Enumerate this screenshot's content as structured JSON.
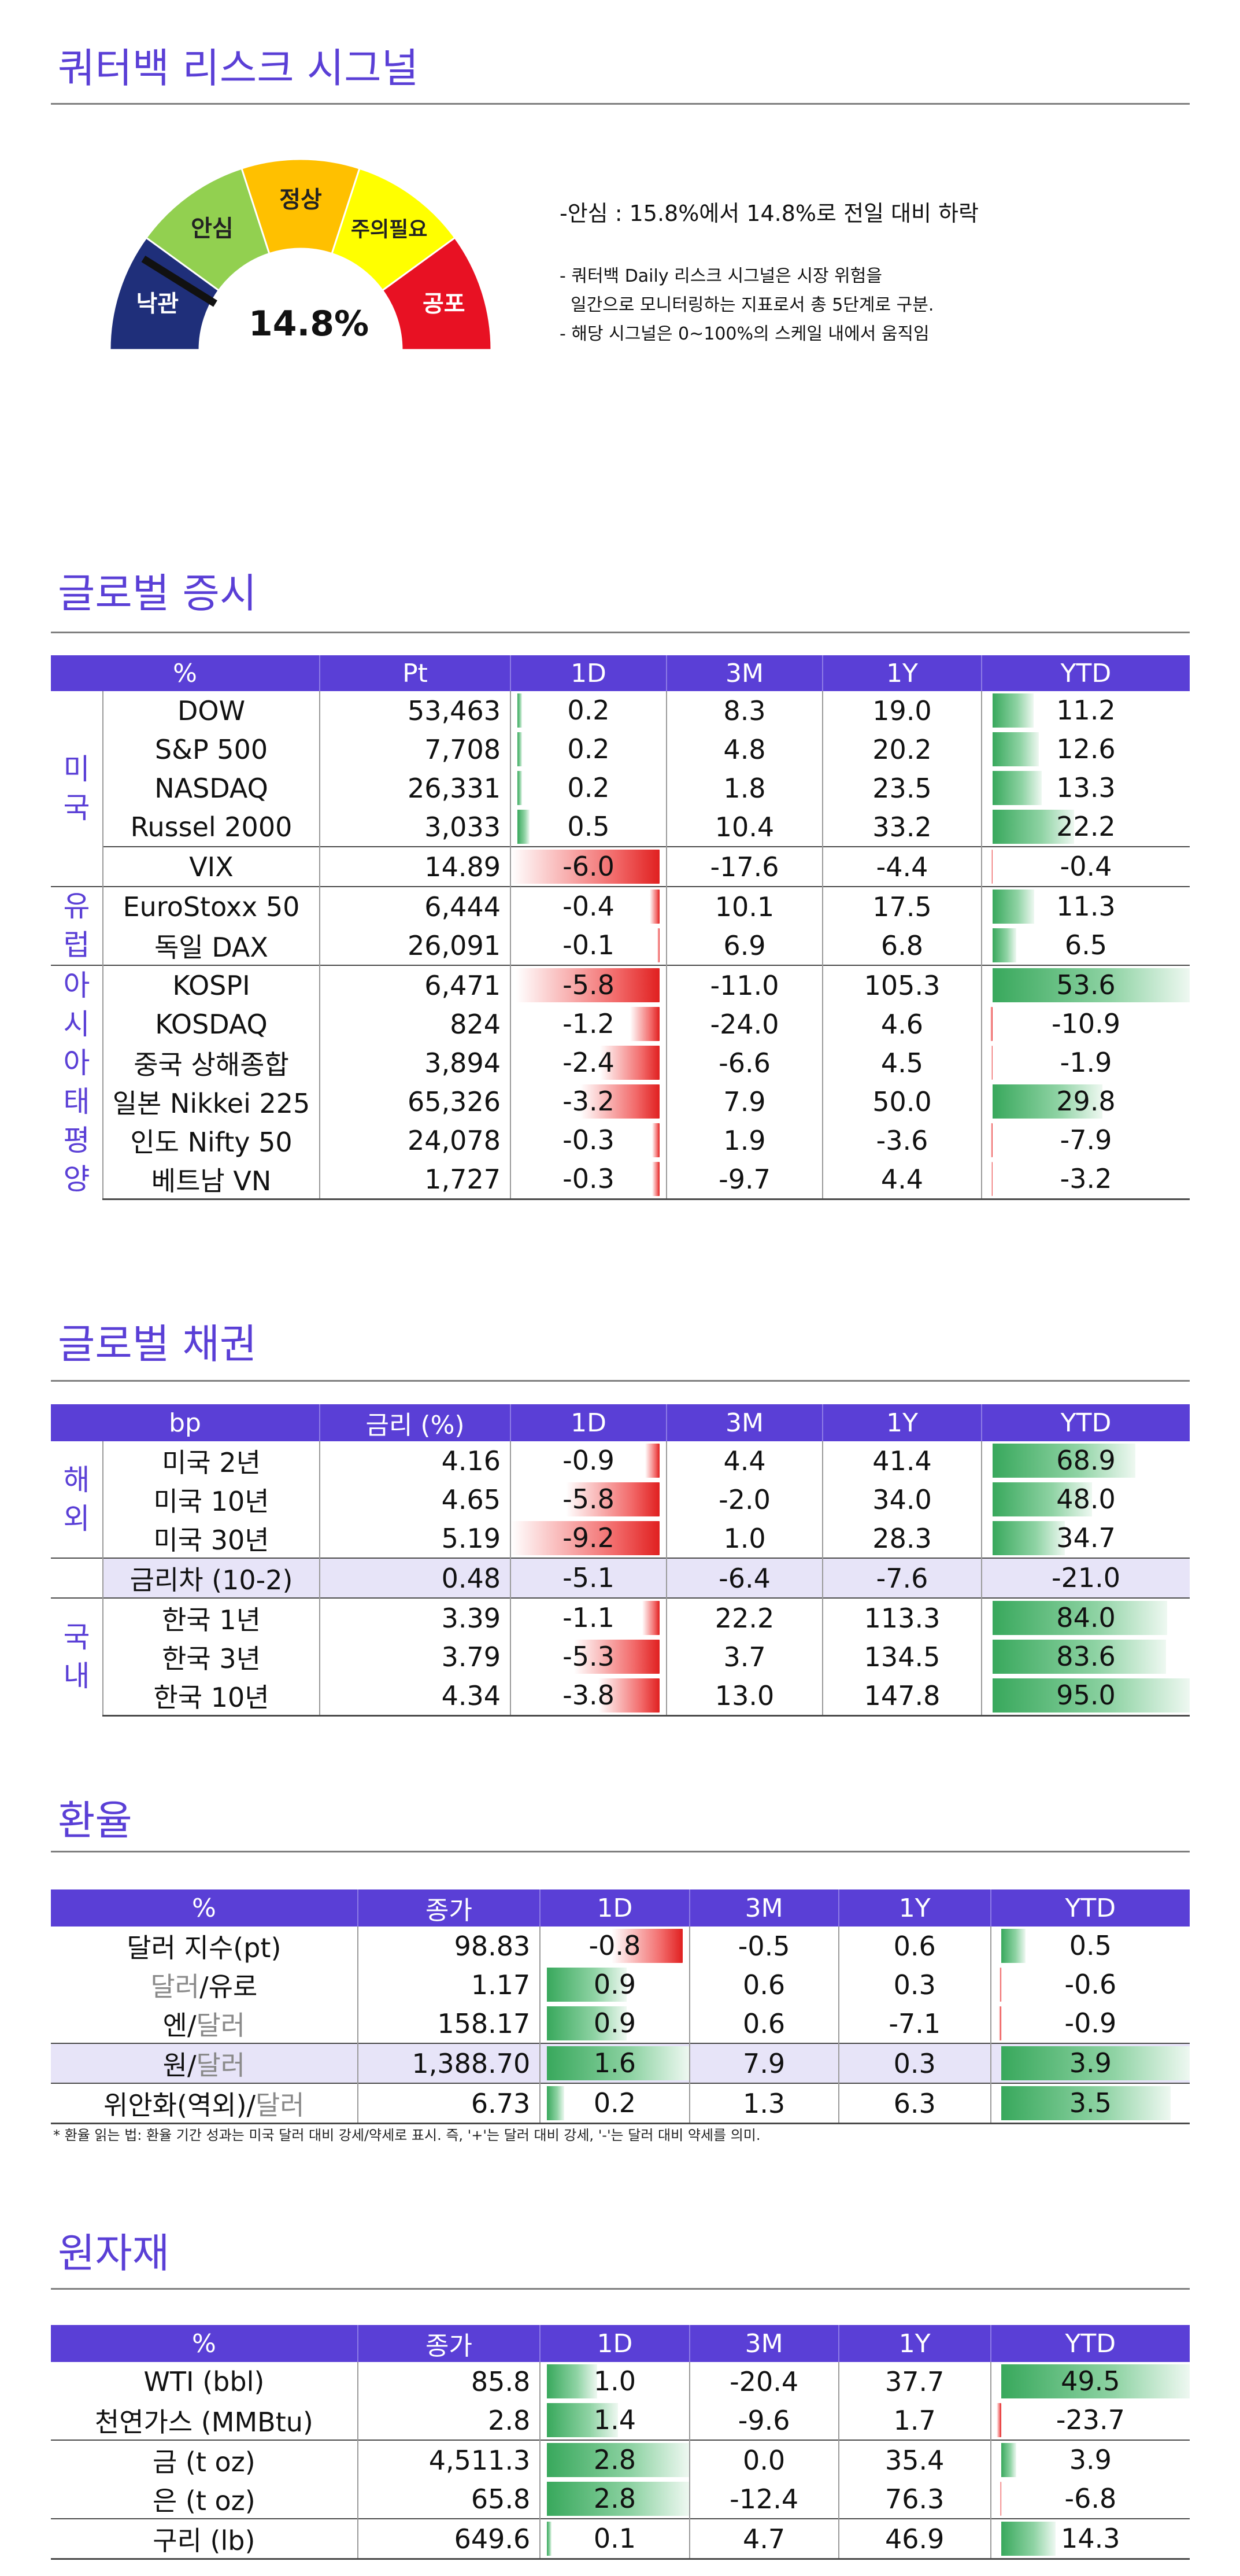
{
  "page_title": "쿼터백 리스크 시그널",
  "risk": {
    "value": "14.8%",
    "fraction": 0.148,
    "zones": [
      {
        "label": "낙관",
        "color": "#1f2f7a"
      },
      {
        "label": "안심",
        "color": "#92d050"
      },
      {
        "label": "정상",
        "color": "#ffc000"
      },
      {
        "label": "주의필요",
        "color": "#ffff00"
      },
      {
        "label": "공포",
        "color": "#e81123"
      }
    ],
    "headline": "-안심 : 15.8%에서 14.8%로 전일 대비 하락",
    "desc": [
      "- 쿼터백 Daily 리스크 시그널은 시장 위험을",
      "  일간으로 모니터링하는 지표로서 총 5단계로 구분.",
      "- 해당 시그널은 0~100%의 스케일 내에서 움직임"
    ]
  },
  "equity": {
    "title": "글로벌 증시",
    "headers": [
      "%",
      "Pt",
      "1D",
      "3M",
      "1Y",
      "YTD"
    ],
    "groups": [
      {
        "label": "미국",
        "rows": [
          {
            "name": "DOW",
            "pt": "53,463",
            "d1": 0.2,
            "m3": "8.3",
            "y1": "19.0",
            "ytd": 11.2
          },
          {
            "name": "S&P 500",
            "pt": "7,708",
            "d1": 0.2,
            "m3": "4.8",
            "y1": "20.2",
            "ytd": 12.6
          },
          {
            "name": "NASDAQ",
            "pt": "26,331",
            "d1": 0.2,
            "m3": "1.8",
            "y1": "23.5",
            "ytd": 13.3
          },
          {
            "name": "Russel 2000",
            "pt": "3,033",
            "d1": 0.5,
            "m3": "10.4",
            "y1": "33.2",
            "ytd": 22.2
          },
          {
            "name": "VIX",
            "pt": "14.89",
            "d1": -6.0,
            "m3": "-17.6",
            "y1": "-4.4",
            "ytd": -0.4
          }
        ]
      },
      {
        "label": "유럽",
        "rows": [
          {
            "name": "EuroStoxx 50",
            "pt": "6,444",
            "d1": -0.4,
            "m3": "10.1",
            "y1": "17.5",
            "ytd": 11.3
          },
          {
            "name": "독일 DAX",
            "pt": "26,091",
            "d1": -0.1,
            "m3": "6.9",
            "y1": "6.8",
            "ytd": 6.5
          }
        ]
      },
      {
        "label": "아시아태평양",
        "rows": [
          {
            "name": "KOSPI",
            "pt": "6,471",
            "d1": -5.8,
            "m3": "-11.0",
            "y1": "105.3",
            "ytd": 53.6
          },
          {
            "name": "KOSDAQ",
            "pt": "824",
            "d1": -1.2,
            "m3": "-24.0",
            "y1": "4.6",
            "ytd": -10.9
          },
          {
            "name": "중국 상해종합",
            "pt": "3,894",
            "d1": -2.4,
            "m3": "-6.6",
            "y1": "4.5",
            "ytd": -1.9
          },
          {
            "name": "일본 Nikkei 225",
            "pt": "65,326",
            "d1": -3.2,
            "m3": "7.9",
            "y1": "50.0",
            "ytd": 29.8
          },
          {
            "name": "인도 Nifty 50",
            "pt": "24,078",
            "d1": -0.3,
            "m3": "1.9",
            "y1": "-3.6",
            "ytd": -7.9
          },
          {
            "name": "베트남 VN",
            "pt": "1,727",
            "d1": -0.3,
            "m3": "-9.7",
            "y1": "4.4",
            "ytd": -3.2
          }
        ]
      }
    ]
  },
  "bond": {
    "title": "글로벌 채권",
    "headers": [
      "bp",
      "금리 (%)",
      "1D",
      "3M",
      "1Y",
      "YTD"
    ],
    "groups": [
      {
        "label": "해외",
        "rows": [
          {
            "name": "미국 2년",
            "pt": "4.16",
            "d1": -0.9,
            "m3": "4.4",
            "y1": "41.4",
            "ytd": 68.9
          },
          {
            "name": "미국 10년",
            "pt": "4.65",
            "d1": -5.8,
            "m3": "-2.0",
            "y1": "34.0",
            "ytd": 48.0
          },
          {
            "name": "미국 30년",
            "pt": "5.19",
            "d1": -9.2,
            "m3": "1.0",
            "y1": "28.3",
            "ytd": 34.7
          }
        ]
      },
      {
        "label": "",
        "rows": [
          {
            "name": "금리차 (10-2)",
            "pt": "0.48",
            "d1": -5.1,
            "m3": "-6.4",
            "y1": "-7.6",
            "ytd": -21.0,
            "highlight": true,
            "nobar": true
          }
        ]
      },
      {
        "label": "국내",
        "rows": [
          {
            "name": "한국 1년",
            "pt": "3.39",
            "d1": -1.1,
            "m3": "22.2",
            "y1": "113.3",
            "ytd": 84.0
          },
          {
            "name": "한국 3년",
            "pt": "3.79",
            "d1": -5.3,
            "m3": "3.7",
            "y1": "134.5",
            "ytd": 83.6
          },
          {
            "name": "한국 10년",
            "pt": "4.34",
            "d1": -3.8,
            "m3": "13.0",
            "y1": "147.8",
            "ytd": 95.0
          }
        ]
      }
    ]
  },
  "fx": {
    "title": "환율",
    "headers": [
      "%",
      "종가",
      "1D",
      "3M",
      "1Y",
      "YTD"
    ],
    "rows": [
      {
        "name": "달러 지수(pt)",
        "parts": [
          {
            "t": "달러 지수(pt)",
            "g": false
          }
        ],
        "pt": "98.83",
        "d1": -0.8,
        "m3": "-0.5",
        "y1": "0.6",
        "ytd": 0.5
      },
      {
        "name": "달러/유로",
        "parts": [
          {
            "t": "달러",
            "g": true
          },
          {
            "t": "/유로",
            "g": false
          }
        ],
        "pt": "1.17",
        "d1": 0.9,
        "m3": "0.6",
        "y1": "0.3",
        "ytd": -0.6
      },
      {
        "name": "엔/달러",
        "parts": [
          {
            "t": "엔/",
            "g": false
          },
          {
            "t": "달러",
            "g": true
          }
        ],
        "pt": "158.17",
        "d1": 0.9,
        "m3": "0.6",
        "y1": "-7.1",
        "ytd": -0.9
      },
      {
        "name": "원/달러",
        "parts": [
          {
            "t": "원/",
            "g": false
          },
          {
            "t": "달러",
            "g": true
          }
        ],
        "pt": "1,388.70",
        "d1": 1.6,
        "m3": "7.9",
        "y1": "0.3",
        "ytd": 3.9,
        "highlight": true
      },
      {
        "name": "위안화(역외)/달러",
        "parts": [
          {
            "t": "위안화(역외)/",
            "g": false
          },
          {
            "t": "달러",
            "g": true
          }
        ],
        "pt": "6.73",
        "d1": 0.2,
        "m3": "1.3",
        "y1": "6.3",
        "ytd": 3.5
      }
    ],
    "note": "* 환율 읽는 법: 환율 기간 성과는 미국 달러 대비 강세/약세로 표시. 즉, '+'는 달러 대비 강세, '-'는 달러 대비 약세를 의미."
  },
  "commodity": {
    "title": "원자재",
    "headers": [
      "%",
      "종가",
      "1D",
      "3M",
      "1Y",
      "YTD"
    ],
    "rows": [
      {
        "name": "WTI (bbl)",
        "pt": "85.8",
        "d1": 1.0,
        "m3": "-20.4",
        "y1": "37.7",
        "ytd": 49.5
      },
      {
        "name": "천연가스 (MMBtu)",
        "pt": "2.8",
        "d1": 1.4,
        "m3": "-9.6",
        "y1": "1.7",
        "ytd": -23.7
      },
      {
        "name": "금 (t oz)",
        "pt": "4,511.3",
        "d1": 2.8,
        "m3": "0.0",
        "y1": "35.4",
        "ytd": 3.9
      },
      {
        "name": "은 (t oz)",
        "pt": "65.8",
        "d1": 2.8,
        "m3": "-12.4",
        "y1": "76.3",
        "ytd": -6.8
      },
      {
        "name": "구리 (lb)",
        "pt": "649.6",
        "d1": 0.1,
        "m3": "4.7",
        "y1": "46.9",
        "ytd": 14.3
      }
    ]
  }
}
